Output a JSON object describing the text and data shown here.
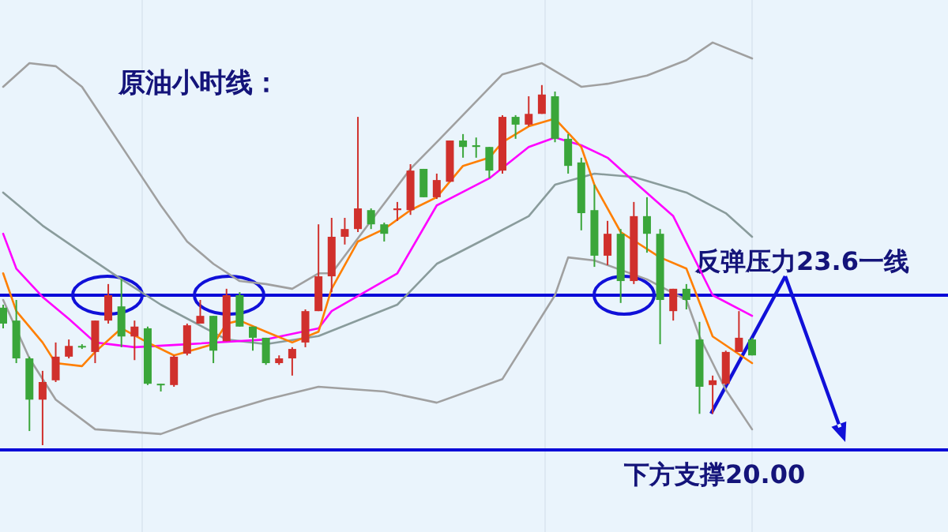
{
  "chart_data": {
    "type": "candlestick",
    "title": "原油小时线：",
    "categories": [
      null,
      null,
      null,
      null,
      null,
      null,
      null,
      null,
      null,
      null,
      null,
      null,
      null,
      null,
      null,
      null,
      null,
      null,
      null,
      null,
      null,
      null,
      null,
      null,
      null,
      null,
      null,
      null,
      null,
      null,
      null,
      null,
      null,
      null,
      null,
      null,
      null,
      null,
      null,
      null,
      null,
      null,
      null,
      null,
      null,
      null,
      null,
      null,
      null,
      null,
      null,
      null,
      null,
      null,
      null,
      null,
      null,
      null
    ],
    "ohlc": [
      [
        23.31,
        23.38,
        22.83,
        22.94
      ],
      [
        23.01,
        23.49,
        22.02,
        22.13
      ],
      [
        22.13,
        22.17,
        20.44,
        21.17
      ],
      [
        21.17,
        21.84,
        20.11,
        21.58
      ],
      [
        21.62,
        22.5,
        21.58,
        22.17
      ],
      [
        22.17,
        22.57,
        22.13,
        22.42
      ],
      [
        22.42,
        22.46,
        22.35,
        22.39
      ],
      [
        22.28,
        23.01,
        22.02,
        23.01
      ],
      [
        23.01,
        23.86,
        22.94,
        23.6
      ],
      [
        23.34,
        23.97,
        22.39,
        22.64
      ],
      [
        22.64,
        23.01,
        22.09,
        22.87
      ],
      [
        22.83,
        22.87,
        21.51,
        21.54
      ],
      [
        21.54,
        21.54,
        21.36,
        21.51
      ],
      [
        21.51,
        22.2,
        21.47,
        22.17
      ],
      [
        22.24,
        22.94,
        22.2,
        22.9
      ],
      [
        22.94,
        23.49,
        22.94,
        23.12
      ],
      [
        23.12,
        23.12,
        22.02,
        22.31
      ],
      [
        22.53,
        23.75,
        22.53,
        23.6
      ],
      [
        23.6,
        23.67,
        22.87,
        22.87
      ],
      [
        22.87,
        22.87,
        22.31,
        22.61
      ],
      [
        22.61,
        22.61,
        21.98,
        22.02
      ],
      [
        22.02,
        22.2,
        21.98,
        22.13
      ],
      [
        22.13,
        22.39,
        21.73,
        22.35
      ],
      [
        22.5,
        23.27,
        22.39,
        23.23
      ],
      [
        23.23,
        25.25,
        23.23,
        24.04
      ],
      [
        24.04,
        25.4,
        23.67,
        24.96
      ],
      [
        24.96,
        25.4,
        24.78,
        25.14
      ],
      [
        25.14,
        27.75,
        25.07,
        25.62
      ],
      [
        25.58,
        25.62,
        25.14,
        25.25
      ],
      [
        25.25,
        25.29,
        24.85,
        25.03
      ],
      [
        25.58,
        25.77,
        25.33,
        25.62
      ],
      [
        25.58,
        26.65,
        25.47,
        26.5
      ],
      [
        26.54,
        26.54,
        25.88,
        25.88
      ],
      [
        25.88,
        26.43,
        25.84,
        26.28
      ],
      [
        26.24,
        27.2,
        26.24,
        27.2
      ],
      [
        27.2,
        27.35,
        26.8,
        27.05
      ],
      [
        27.09,
        27.27,
        26.8,
        27.05
      ],
      [
        27.05,
        27.05,
        26.32,
        26.5
      ],
      [
        26.5,
        27.79,
        26.43,
        27.75
      ],
      [
        27.75,
        27.79,
        27.24,
        27.57
      ],
      [
        27.57,
        28.23,
        27.53,
        27.82
      ],
      [
        27.82,
        28.49,
        27.82,
        28.27
      ],
      [
        28.23,
        28.34,
        27.16,
        27.24
      ],
      [
        27.24,
        27.35,
        26.43,
        26.61
      ],
      [
        26.69,
        26.8,
        25.11,
        25.51
      ],
      [
        25.58,
        26.17,
        24.26,
        24.52
      ],
      [
        24.52,
        25.33,
        24.3,
        25.03
      ],
      [
        25.03,
        25.14,
        23.42,
        23.93
      ],
      [
        23.93,
        25.77,
        23.86,
        25.44
      ],
      [
        25.44,
        25.88,
        24.59,
        25.03
      ],
      [
        25.03,
        25.14,
        22.46,
        23.49
      ],
      [
        23.23,
        23.75,
        23.01,
        23.75
      ],
      [
        23.75,
        23.86,
        23.27,
        23.49
      ],
      [
        22.57,
        22.98,
        20.84,
        21.47
      ],
      [
        21.51,
        21.73,
        20.84,
        21.62
      ],
      [
        21.54,
        22.31,
        21.51,
        22.28
      ],
      [
        22.28,
        23.23,
        22.28,
        22.61
      ],
      [
        22.57,
        22.61,
        22.2,
        22.2
      ]
    ],
    "colors": [
      "#3aa63a",
      "#3aa63a",
      "#3aa63a",
      "#d0302c",
      "#d0302c",
      "#d0302c",
      "#3aa63a",
      "#d0302c",
      "#d0302c",
      "#3aa63a",
      "#d0302c",
      "#3aa63a",
      "#3aa63a",
      "#d0302c",
      "#d0302c",
      "#d0302c",
      "#3aa63a",
      "#d0302c",
      "#3aa63a",
      "#3aa63a",
      "#3aa63a",
      "#d0302c",
      "#d0302c",
      "#d0302c",
      "#d0302c",
      "#d0302c",
      "#d0302c",
      "#d0302c",
      "#3aa63a",
      "#3aa63a",
      "#d0302c",
      "#d0302c",
      "#3aa63a",
      "#d0302c",
      "#d0302c",
      "#3aa63a",
      "#3aa63a",
      "#3aa63a",
      "#d0302c",
      "#3aa63a",
      "#d0302c",
      "#d0302c",
      "#3aa63a",
      "#3aa63a",
      "#3aa63a",
      "#3aa63a",
      "#d0302c",
      "#3aa63a",
      "#d0302c",
      "#3aa63a",
      "#3aa63a",
      "#d0302c",
      "#3aa63a",
      "#3aa63a",
      "#d0302c",
      "#d0302c",
      "#d0302c",
      "#3aa63a"
    ],
    "ylim": [
      18.09,
      30.47
    ],
    "series": [
      {
        "type": "line",
        "color": "#a0a0a0",
        "values": [
          28.45,
          null,
          29.0,
          null,
          28.93,
          null,
          28.45,
          null,
          27.53,
          null,
          26.61,
          null,
          25.69,
          null,
          24.85,
          null,
          24.33,
          null,
          23.93,
          null,
          23.86,
          null,
          23.75,
          null,
          24.11,
          24.11,
          null,
          null,
          25.33,
          null,
          null,
          26.54,
          null,
          27.16,
          null,
          null,
          null,
          null,
          28.74,
          null,
          null,
          29.0,
          null,
          null,
          28.45,
          null,
          28.52,
          null,
          null,
          28.71,
          null,
          null,
          29.07,
          null,
          29.48,
          null,
          null,
          29.11
        ]
      },
      {
        "type": "line",
        "color": "#8a9c9c",
        "values": [
          25.99,
          null,
          null,
          25.22,
          null,
          null,
          24.59,
          null,
          null,
          23.97,
          null,
          null,
          23.38,
          null,
          null,
          null,
          null,
          22.57,
          null,
          null,
          22.46,
          null,
          null,
          null,
          22.65,
          null,
          null,
          null,
          null,
          null,
          23.38,
          null,
          null,
          24.33,
          null,
          null,
          null,
          24.96,
          null,
          null,
          25.44,
          null,
          26.17,
          null,
          null,
          26.43,
          null,
          null,
          26.35,
          null,
          null,
          null,
          25.99,
          null,
          null,
          25.51,
          null,
          24.96
        ]
      },
      {
        "type": "line",
        "color": "#a0a0a0",
        "values": [
          23.49,
          null,
          22.13,
          null,
          21.17,
          null,
          null,
          20.48,
          null,
          null,
          null,
          null,
          20.37,
          null,
          null,
          null,
          20.81,
          null,
          null,
          null,
          21.17,
          null,
          null,
          null,
          21.47,
          null,
          null,
          null,
          null,
          21.36,
          null,
          null,
          null,
          21.1,
          null,
          null,
          null,
          null,
          21.65,
          null,
          null,
          null,
          23.6,
          24.48,
          null,
          24.41,
          null,
          null,
          null,
          23.97,
          null,
          null,
          23.49,
          22.64,
          null,
          21.4,
          null,
          20.48
        ]
      },
      {
        "type": "line",
        "color": "#ff00ff",
        "values": [
          25.03,
          24.22,
          null,
          23.56,
          null,
          23.05,
          null,
          22.5,
          null,
          null,
          22.39,
          null,
          null,
          null,
          22.46,
          null,
          null,
          null,
          null,
          null,
          22.57,
          null,
          null,
          null,
          22.83,
          23.23,
          null,
          null,
          null,
          null,
          24.11,
          null,
          null,
          25.69,
          null,
          null,
          null,
          26.32,
          null,
          null,
          27.05,
          null,
          27.27,
          null,
          27.09,
          null,
          26.8,
          null,
          26.25,
          null,
          null,
          25.44,
          null,
          null,
          23.6,
          null,
          null,
          23.12
        ]
      },
      {
        "type": "line",
        "color": "#ff7f00",
        "values": [
          24.11,
          23.23,
          null,
          22.5,
          22.02,
          null,
          21.95,
          22.28,
          null,
          22.83,
          null,
          22.5,
          null,
          22.2,
          null,
          null,
          22.46,
          22.94,
          23.01,
          null,
          22.75,
          null,
          22.5,
          null,
          22.75,
          23.75,
          null,
          24.85,
          null,
          25.14,
          null,
          25.58,
          null,
          25.88,
          null,
          26.61,
          null,
          26.8,
          27.16,
          null,
          27.53,
          null,
          27.71,
          null,
          27.05,
          26.17,
          null,
          25.07,
          null,
          null,
          24.48,
          null,
          24.22,
          null,
          22.64,
          null,
          null,
          22.02
        ]
      }
    ],
    "ref_lines": [
      {
        "axis": "y",
        "value": 23.6,
        "label": "反弹压力23.6一线",
        "color": "#0a0ad8"
      },
      {
        "axis": "y",
        "value": 20.0,
        "label": "下方支撑20.00",
        "color": "#0a0ad8"
      }
    ]
  }
}
